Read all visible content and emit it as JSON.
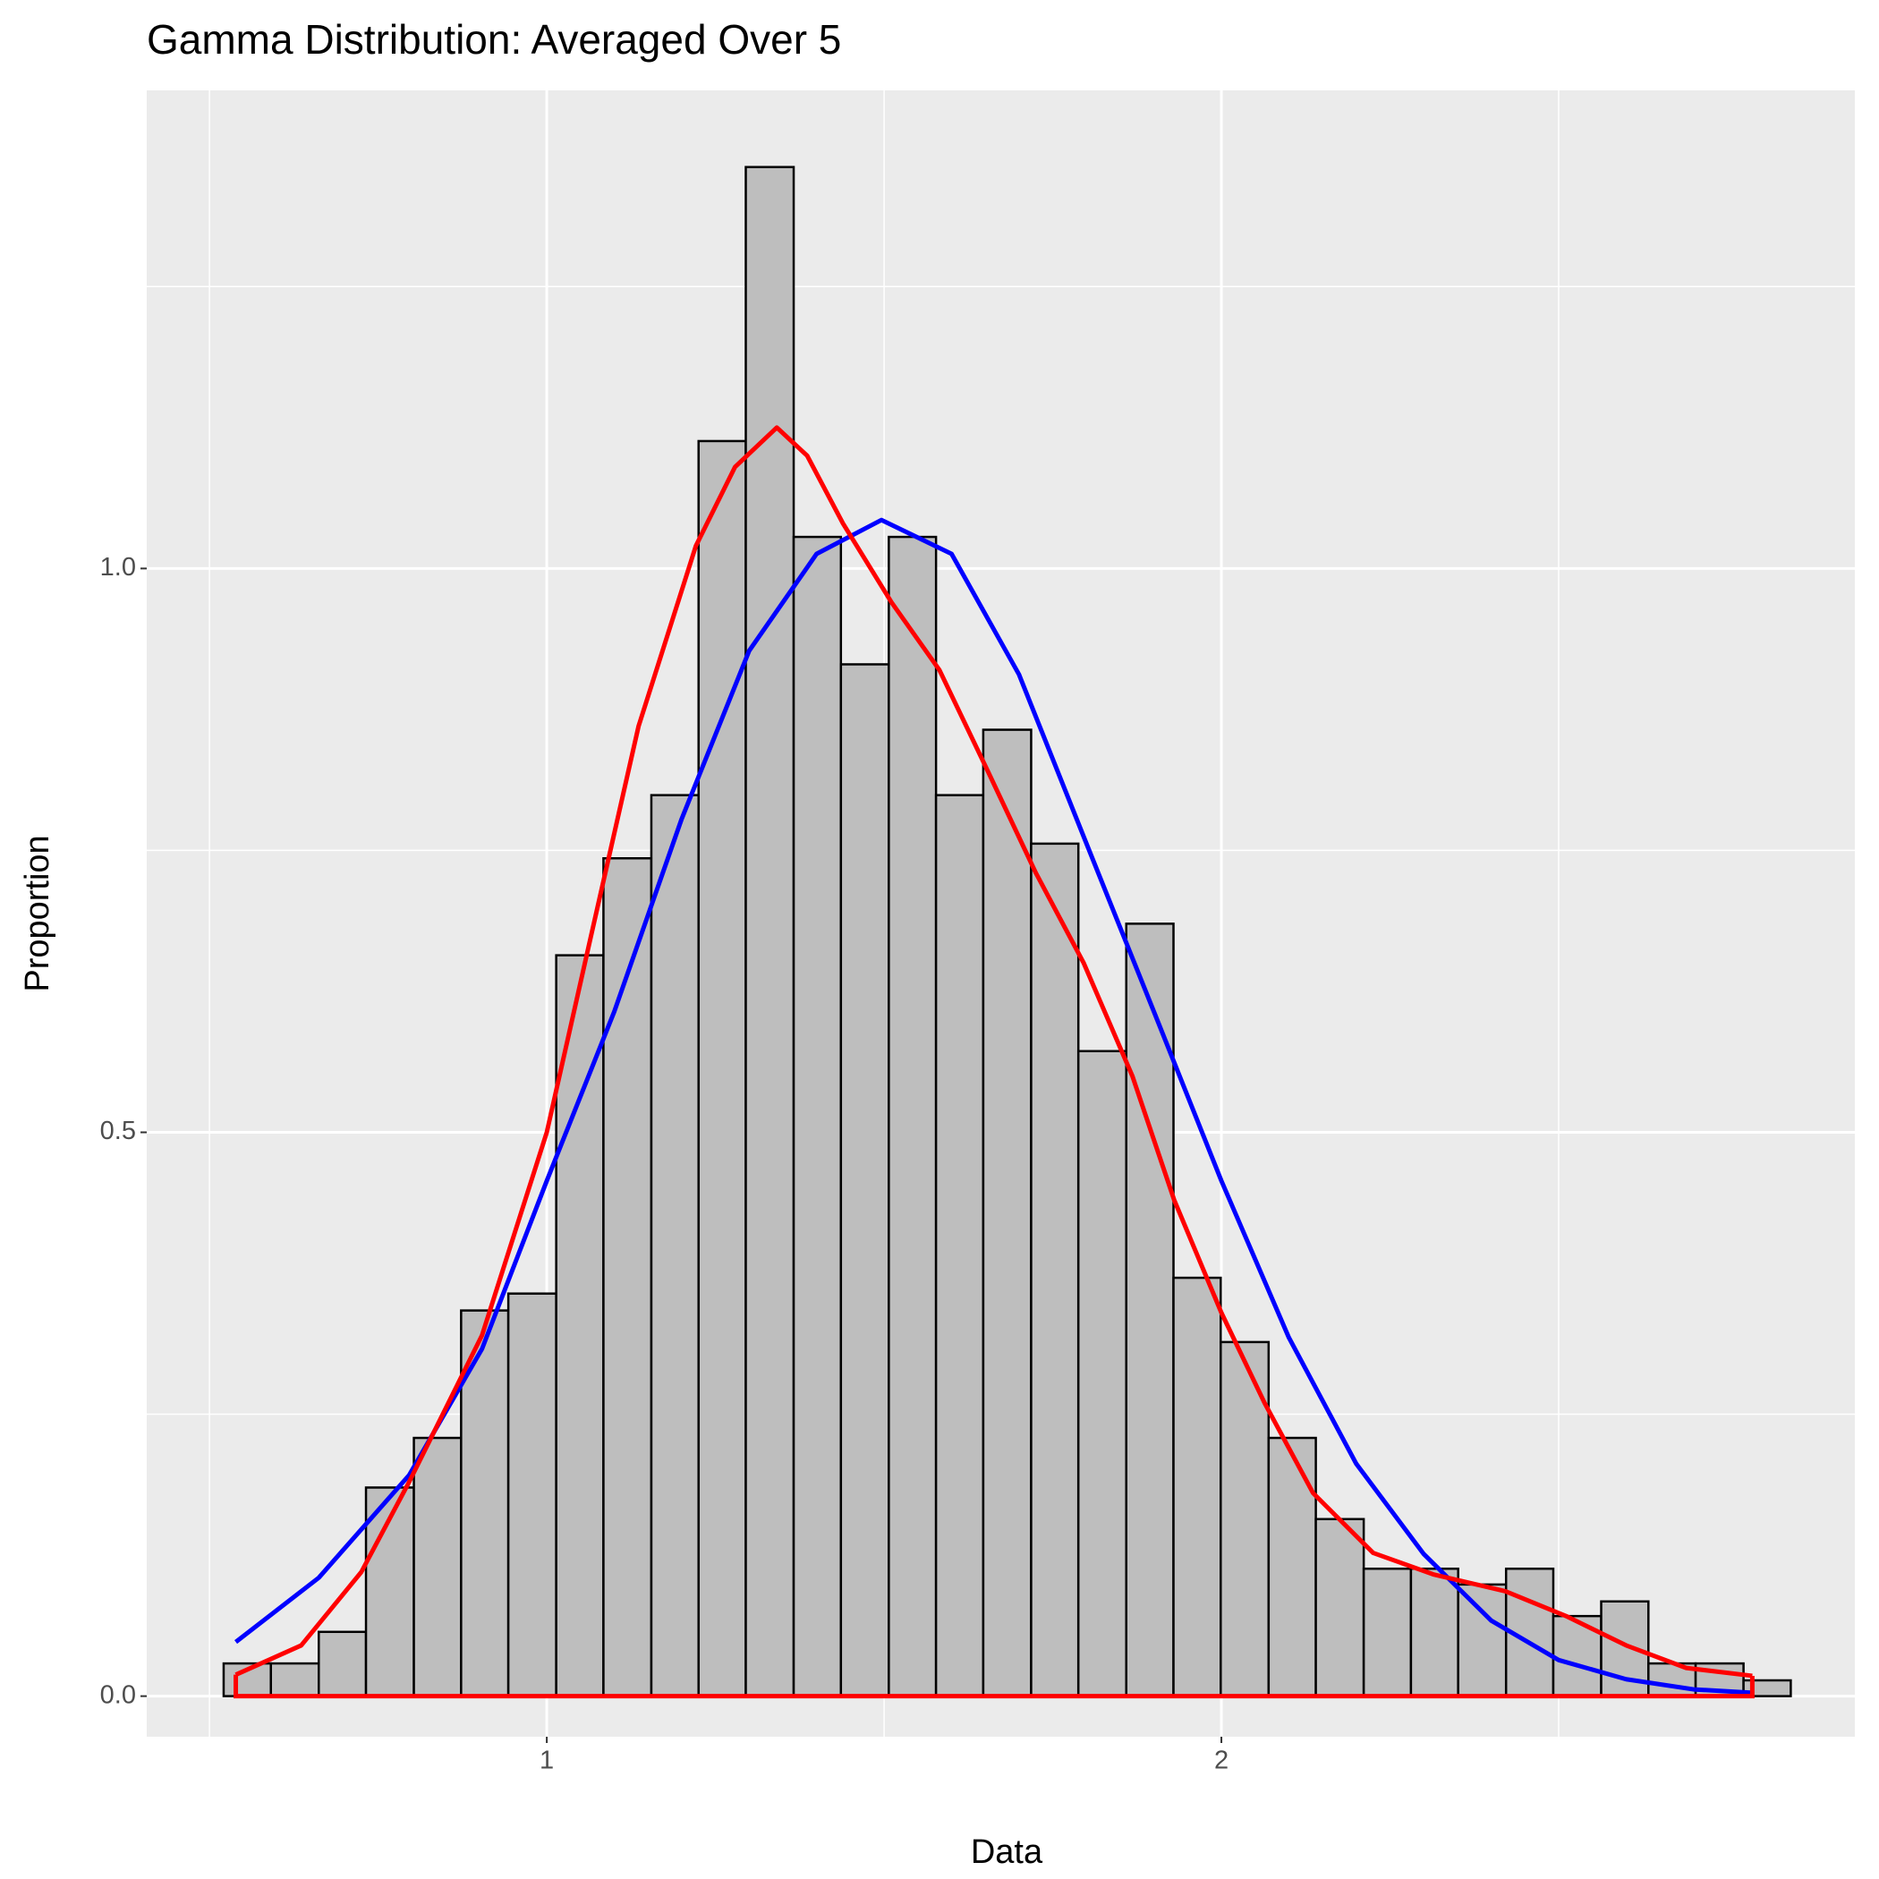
{
  "chart_data": {
    "type": "histogram",
    "title": "Gamma Distribution: Averaged Over 5",
    "x_label": "Data",
    "y_label": "Proportion",
    "bins": [
      0.521,
      0.591,
      0.662,
      0.732,
      0.803,
      0.873,
      0.943,
      1.014,
      1.084,
      1.155,
      1.225,
      1.295,
      1.366,
      1.436,
      1.507,
      1.577,
      1.647,
      1.718,
      1.788,
      1.859,
      1.929,
      1.999,
      2.07,
      2.14,
      2.211,
      2.281,
      2.351,
      2.422,
      2.492,
      2.563,
      2.633,
      2.703,
      2.774,
      2.844
    ],
    "values": [
      0.029,
      0.029,
      0.057,
      0.185,
      0.229,
      0.342,
      0.357,
      0.657,
      0.743,
      0.799,
      1.113,
      1.356,
      1.028,
      0.915,
      1.028,
      0.799,
      0.857,
      0.756,
      0.572,
      0.685,
      0.371,
      0.314,
      0.229,
      0.157,
      0.113,
      0.113,
      0.099,
      0.113,
      0.071,
      0.084,
      0.029,
      0.029,
      0.014
    ],
    "color": "#bebebe",
    "edge_color": "#000000",
    "lines": [
      {
        "color": "#0000ff",
        "x": [
          0.539,
          0.662,
          0.796,
          0.904,
          1.0,
          1.1,
          1.2,
          1.3,
          1.4,
          1.496,
          1.6,
          1.7,
          1.8,
          1.9,
          2.0,
          2.1,
          2.2,
          2.3,
          2.4,
          2.5,
          2.6,
          2.7,
          2.787
        ],
        "values": [
          0.048,
          0.105,
          0.196,
          0.308,
          0.457,
          0.607,
          0.778,
          0.927,
          1.013,
          1.043,
          1.013,
          0.906,
          0.756,
          0.607,
          0.457,
          0.318,
          0.206,
          0.126,
          0.067,
          0.032,
          0.015,
          0.006,
          0.003
        ]
      },
      {
        "color": "#ff0000",
        "x": [
          0.539,
          0.636,
          0.725,
          0.796,
          0.904,
          1.0,
          1.064,
          1.136,
          1.221,
          1.279,
          1.341,
          1.386,
          1.439,
          1.511,
          1.582,
          1.654,
          1.725,
          1.796,
          1.868,
          1.93,
          2.0,
          2.064,
          2.136,
          2.225,
          2.314,
          2.421,
          2.511,
          2.6,
          2.689,
          2.787
        ],
        "values": [
          0.019,
          0.045,
          0.11,
          0.19,
          0.32,
          0.5,
          0.67,
          0.86,
          1.02,
          1.09,
          1.125,
          1.1,
          1.04,
          0.97,
          0.91,
          0.82,
          0.73,
          0.65,
          0.55,
          0.44,
          0.34,
          0.26,
          0.18,
          0.127,
          0.108,
          0.093,
          0.071,
          0.045,
          0.025,
          0.018
        ]
      }
    ],
    "xlim": [
      0.407,
      2.939
    ],
    "ylim": [
      -0.036,
      1.424
    ],
    "xticks": [
      1,
      2
    ],
    "x_minor_ticks": [
      0.5,
      1.5,
      2.5
    ],
    "yticks": [
      {
        "value": 0,
        "label": "0.0"
      },
      0.5,
      {
        "value": 1,
        "label": "1.0"
      }
    ],
    "y_minor_ticks": [
      0.25,
      0.75,
      1.25
    ],
    "grid": true
  }
}
